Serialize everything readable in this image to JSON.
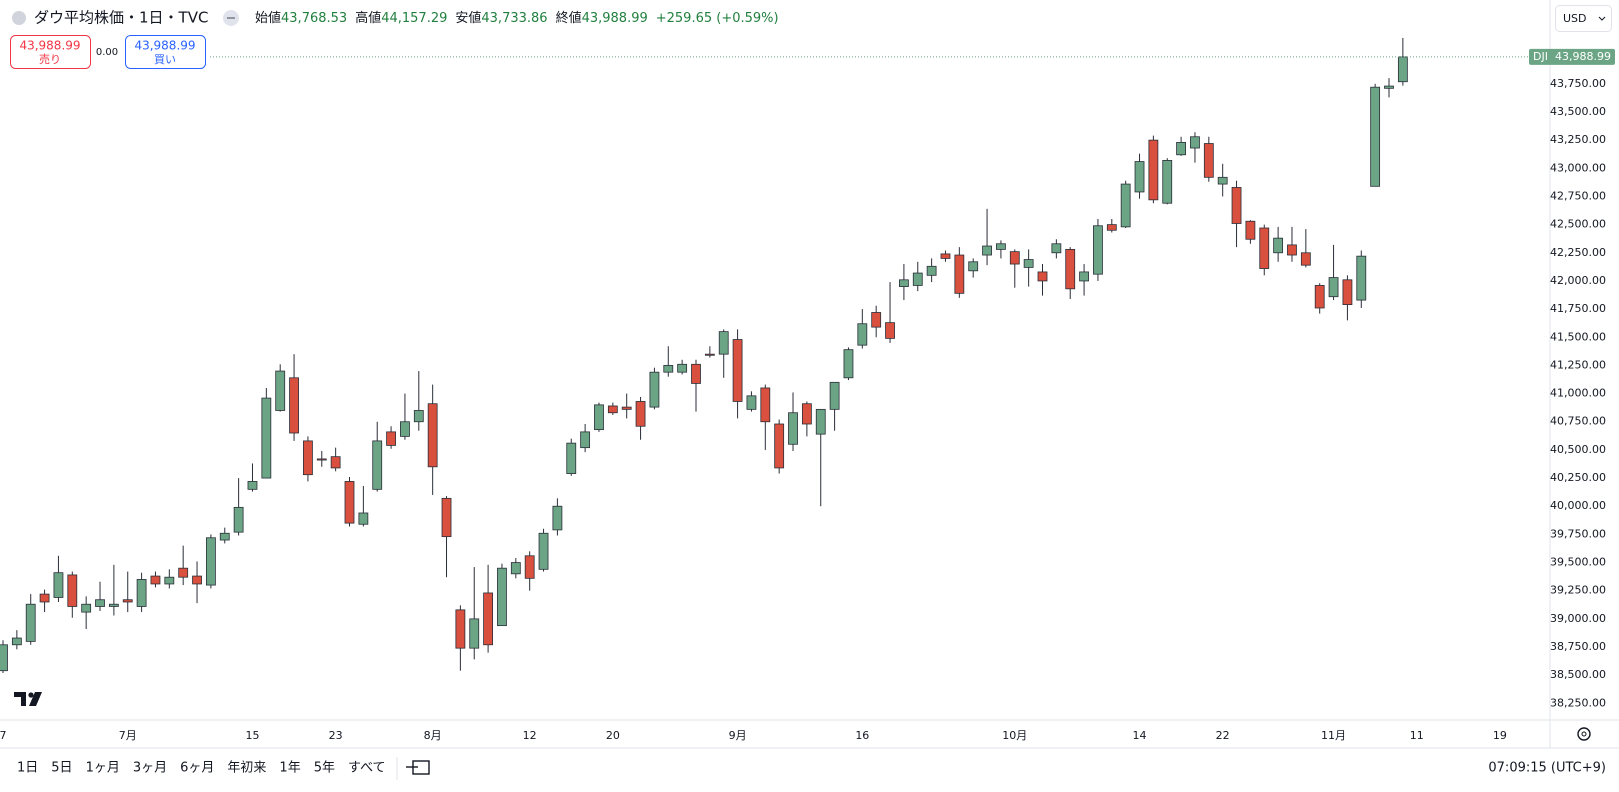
{
  "chart_data": {
    "type": "candlestick",
    "categories": [
      "7",
      null,
      null,
      null,
      null,
      null,
      null,
      null,
      null,
      "7月",
      null,
      null,
      null,
      null,
      null,
      null,
      null,
      null,
      "15",
      null,
      null,
      null,
      null,
      null,
      "23",
      null,
      null,
      null,
      null,
      null,
      null,
      "8月",
      null,
      null,
      null,
      null,
      null,
      null,
      "12",
      null,
      null,
      null,
      null,
      null,
      "20",
      null,
      null,
      null,
      null,
      null,
      null,
      null,
      null,
      "9月",
      null,
      null,
      null,
      null,
      null,
      null,
      null,
      null,
      "16",
      null,
      null,
      null,
      null,
      null,
      null,
      null,
      null,
      null,
      null,
      "10月",
      null,
      null,
      null,
      null,
      null,
      null,
      null,
      null,
      "14",
      null,
      null,
      null,
      null,
      null,
      "22",
      null,
      null,
      null,
      null,
      null,
      null,
      null,
      "11月",
      null,
      null,
      null,
      null,
      null,
      "11",
      null,
      null,
      null,
      null,
      null,
      "19",
      null
    ],
    "open": [
      38540,
      38770,
      38800,
      39220,
      39190,
      39390,
      39060,
      39110,
      39110,
      39170,
      39110,
      39380,
      39310,
      39450,
      39380,
      39300,
      39700,
      39770,
      40150,
      40250,
      40850,
      41140,
      40580,
      40420,
      40440,
      40220,
      39840,
      40150,
      40660,
      40620,
      40750,
      40910,
      40070,
      39080,
      38740,
      39230,
      38940,
      39400,
      39560,
      39440,
      39790,
      40290,
      40520,
      40680,
      40890,
      40880,
      40930,
      40880,
      41190,
      41190,
      41260,
      41350,
      41350,
      41480,
      40860,
      41050,
      40730,
      40550,
      40910,
      40640,
      40860,
      41140,
      41430,
      41720,
      41630,
      41950,
      41960,
      42050,
      42240,
      42230,
      42090,
      42230,
      42280,
      42260,
      42120,
      42080,
      42250,
      42280,
      42000,
      42060,
      42500,
      42480,
      42790,
      43250,
      42690,
      43120,
      43180,
      43220,
      42860,
      42830,
      42530,
      42470,
      42250,
      42320,
      42250,
      41960,
      41860,
      42010,
      41830,
      42840,
      43710,
      43768.53,
      null,
      null,
      null,
      null,
      null,
      null,
      null,
      null
    ],
    "high": [
      38810,
      38900,
      39220,
      39260,
      39560,
      39420,
      39200,
      39330,
      39480,
      39420,
      39410,
      39420,
      39440,
      39650,
      39510,
      39750,
      39810,
      40250,
      40380,
      41050,
      41260,
      41350,
      40620,
      40490,
      40520,
      40260,
      40180,
      40750,
      40710,
      41000,
      41200,
      41080,
      40090,
      39120,
      39460,
      39480,
      39490,
      39540,
      39600,
      39800,
      40070,
      40600,
      40730,
      40920,
      40920,
      41000,
      40970,
      41230,
      41420,
      41300,
      41300,
      41420,
      41570,
      41570,
      41020,
      41080,
      40770,
      41010,
      40930,
      40860,
      41100,
      41410,
      41750,
      41780,
      41990,
      42150,
      42170,
      42200,
      42270,
      42300,
      42200,
      42640,
      42360,
      42280,
      42280,
      42150,
      42370,
      42300,
      42150,
      42550,
      42550,
      42890,
      43130,
      43290,
      43090,
      43280,
      43320,
      43280,
      43040,
      42890,
      42540,
      42500,
      42480,
      42480,
      42460,
      41980,
      42320,
      42050,
      42270,
      43750,
      43800,
      44157.29,
      null,
      null,
      null,
      null,
      null,
      null,
      null,
      null
    ],
    "low": [
      38520,
      38730,
      38770,
      39060,
      39150,
      39010,
      38910,
      39070,
      39030,
      39060,
      39060,
      39280,
      39270,
      39300,
      39140,
      39270,
      39670,
      39740,
      40130,
      40250,
      40840,
      40580,
      40220,
      40350,
      40310,
      39820,
      39820,
      40130,
      40510,
      40590,
      40670,
      40100,
      39370,
      38540,
      38640,
      38700,
      38940,
      39360,
      39250,
      39420,
      39740,
      40270,
      40480,
      40660,
      40810,
      40780,
      40590,
      40860,
      41150,
      41170,
      40840,
      41320,
      41140,
      40780,
      40840,
      40500,
      40290,
      40490,
      40620,
      40000,
      40670,
      41120,
      41400,
      41500,
      41450,
      41830,
      41910,
      41990,
      42170,
      41850,
      42030,
      42140,
      42200,
      41940,
      41950,
      41870,
      42200,
      41840,
      41870,
      42000,
      42430,
      42470,
      42730,
      42690,
      42680,
      43110,
      43050,
      42880,
      42750,
      42300,
      42330,
      42050,
      42170,
      42170,
      42120,
      41710,
      41830,
      41650,
      41760,
      42840,
      43630,
      43733.86,
      null,
      null,
      null,
      null,
      null,
      null,
      null,
      null
    ],
    "close": [
      38770,
      38830,
      39130,
      39150,
      39410,
      39110,
      39130,
      39170,
      39130,
      39150,
      39350,
      39310,
      39370,
      39370,
      39310,
      39720,
      39760,
      39990,
      40220,
      40960,
      41200,
      40650,
      40280,
      40410,
      40340,
      39850,
      39940,
      40580,
      40540,
      40750,
      40850,
      40350,
      39730,
      38740,
      39000,
      38770,
      39450,
      39500,
      39360,
      39760,
      40000,
      40560,
      40660,
      40900,
      40830,
      40860,
      40710,
      41190,
      41250,
      41260,
      41090,
      41340,
      41550,
      40930,
      40980,
      40750,
      40340,
      40830,
      40730,
      40860,
      41100,
      41390,
      41620,
      41590,
      41490,
      42010,
      42070,
      42130,
      42200,
      41890,
      42170,
      42310,
      42330,
      42150,
      42190,
      42000,
      42330,
      41930,
      42080,
      42490,
      42450,
      42860,
      43060,
      42720,
      43070,
      43230,
      43280,
      42920,
      42920,
      42510,
      42370,
      42110,
      42380,
      42230,
      42140,
      41760,
      42030,
      41790,
      42220,
      43720,
      43730,
      43988.99,
      null,
      null,
      null,
      null,
      null,
      null,
      null,
      null
    ],
    "up_color": "#6ba585",
    "down_color": "#d9503f",
    "ylim": [
      38120,
      44210
    ],
    "yticks": [
      {
        "value": 38250,
        "label": "38,250.00"
      },
      {
        "value": 38500,
        "label": "38,500.00"
      },
      {
        "value": 38750,
        "label": "38,750.00"
      },
      {
        "value": 39000,
        "label": "39,000.00"
      },
      {
        "value": 39250,
        "label": "39,250.00"
      },
      {
        "value": 39500,
        "label": "39,500.00"
      },
      {
        "value": 39750,
        "label": "39,750.00"
      },
      {
        "value": 40000,
        "label": "40,000.00"
      },
      {
        "value": 40250,
        "label": "40,250.00"
      },
      {
        "value": 40500,
        "label": "40,500.00"
      },
      {
        "value": 40750,
        "label": "40,750.00"
      },
      {
        "value": 41000,
        "label": "41,000.00"
      },
      {
        "value": 41250,
        "label": "41,250.00"
      },
      {
        "value": 41500,
        "label": "41,500.00"
      },
      {
        "value": 41750,
        "label": "41,750.00"
      },
      {
        "value": 42000,
        "label": "42,000.00"
      },
      {
        "value": 42250,
        "label": "42,250.00"
      },
      {
        "value": 42500,
        "label": "42,500.00"
      },
      {
        "value": 42750,
        "label": "42,750.00"
      },
      {
        "value": 43000,
        "label": "43,000.00"
      },
      {
        "value": 43250,
        "label": "43,250.00"
      },
      {
        "value": 43500,
        "label": "43,500.00"
      },
      {
        "value": 43750,
        "label": "43,750.00"
      }
    ],
    "grid": false,
    "last_price": {
      "value": 43988.99,
      "label": "43,988.99",
      "symbol": "DJI"
    }
  },
  "ui": {
    "header": {
      "title": "ダウ平均株価・1日・TVC",
      "ohlc": [
        {
          "label": "始値",
          "value": "43,768.53"
        },
        {
          "label": "高値",
          "value": "44,157.29"
        },
        {
          "label": "安値",
          "value": "43,733.86"
        },
        {
          "label": "終値",
          "value": "43,988.99"
        }
      ],
      "change": "+259.65 (+0.59%)"
    },
    "sell": {
      "price": "43,988.99",
      "label": "売り"
    },
    "spread": "0.00",
    "buy": {
      "price": "43,988.99",
      "label": "買い"
    },
    "currency": "USD",
    "ranges": [
      "1日",
      "5日",
      "1ヶ月",
      "3ヶ月",
      "6ヶ月",
      "年初来",
      "1年",
      "5年",
      "すべて"
    ],
    "clock": "07:09:15 (UTC+9)"
  }
}
